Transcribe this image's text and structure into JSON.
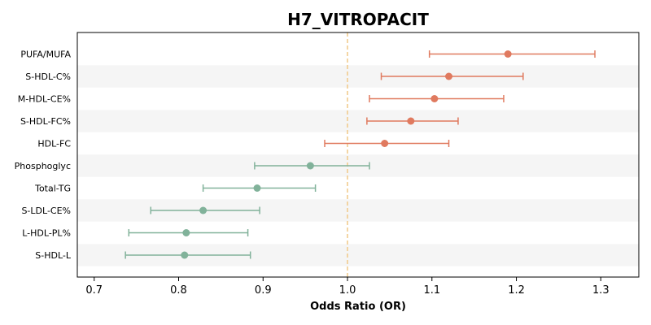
{
  "chart_data": {
    "type": "forest",
    "title": "H7_VITROPACIT",
    "xlabel": "Odds Ratio (OR)",
    "ylabel": "",
    "xlim": [
      0.68,
      1.345
    ],
    "xticks": [
      0.7,
      0.8,
      0.9,
      1.0,
      1.1,
      1.2,
      1.3
    ],
    "xtick_labels": [
      "0.7",
      "0.8",
      "0.9",
      "1.0",
      "1.1",
      "1.2",
      "1.3"
    ],
    "reference_line": 1.0,
    "grid": false,
    "colors": {
      "positive": "#e07a5f",
      "negative": "#81b29a",
      "reference": "#f2cc8f",
      "band": "#f5f5f5"
    },
    "rows": [
      {
        "label": "PUFA/MUFA",
        "or": 1.19,
        "lower": 1.097,
        "upper": 1.293
      },
      {
        "label": "S-HDL-C%",
        "or": 1.12,
        "lower": 1.04,
        "upper": 1.208
      },
      {
        "label": "M-HDL-CE%",
        "or": 1.103,
        "lower": 1.026,
        "upper": 1.185
      },
      {
        "label": "S-HDL-FC%",
        "or": 1.075,
        "lower": 1.023,
        "upper": 1.131
      },
      {
        "label": "HDL-FC",
        "or": 1.044,
        "lower": 0.973,
        "upper": 1.12
      },
      {
        "label": "Phosphoglyc",
        "or": 0.956,
        "lower": 0.89,
        "upper": 1.026
      },
      {
        "label": "Total-TG",
        "or": 0.893,
        "lower": 0.829,
        "upper": 0.962
      },
      {
        "label": "S-LDL-CE%",
        "or": 0.829,
        "lower": 0.767,
        "upper": 0.896
      },
      {
        "label": "L-HDL-PL%",
        "or": 0.809,
        "lower": 0.741,
        "upper": 0.882
      },
      {
        "label": "S-HDL-L",
        "or": 0.807,
        "lower": 0.737,
        "upper": 0.885
      }
    ]
  }
}
